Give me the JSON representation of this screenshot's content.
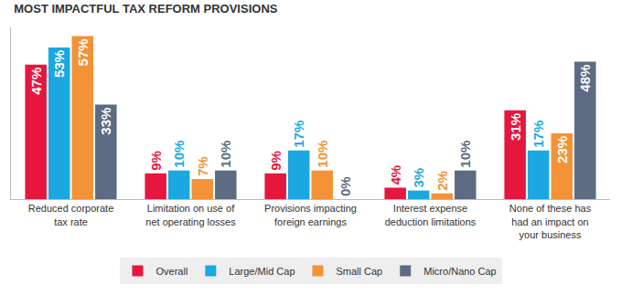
{
  "chart_data": {
    "type": "bar",
    "title": "MOST IMPACTFUL TAX REFORM PROVISIONS",
    "categories": [
      "Reduced corporate\ntax rate",
      "Limitation on use of\nnet operating losses",
      "Provisions impacting\nforeign earnings",
      "Interest expense\ndeduction limitations",
      "None of these has\nhad an impact on\nyour business"
    ],
    "series": [
      {
        "name": "Overall",
        "color": "#e5173f",
        "values": [
          47,
          9,
          9,
          4,
          31
        ],
        "value_labels": [
          "47%",
          "9%",
          "9%",
          "4%",
          "31%"
        ]
      },
      {
        "name": "Large/Mid Cap",
        "color": "#1ba8e0",
        "values": [
          53,
          10,
          17,
          3,
          17
        ],
        "value_labels": [
          "53%",
          "10%",
          "17%",
          "3%",
          "17%"
        ]
      },
      {
        "name": "Small Cap",
        "color": "#f39237",
        "values": [
          57,
          7,
          10,
          2,
          23
        ],
        "value_labels": [
          "57%",
          "7%",
          "10%",
          "2%",
          "23%"
        ]
      },
      {
        "name": "Micro/Nano Cap",
        "color": "#5c6b82",
        "values": [
          33,
          10,
          0,
          10,
          48
        ],
        "value_labels": [
          "33%",
          "10%",
          "0%",
          "10%",
          "48%"
        ]
      }
    ],
    "ylim": [
      0,
      60
    ],
    "grid": false,
    "legend": "bottom",
    "data_labels": true,
    "tick_labels": "x"
  }
}
